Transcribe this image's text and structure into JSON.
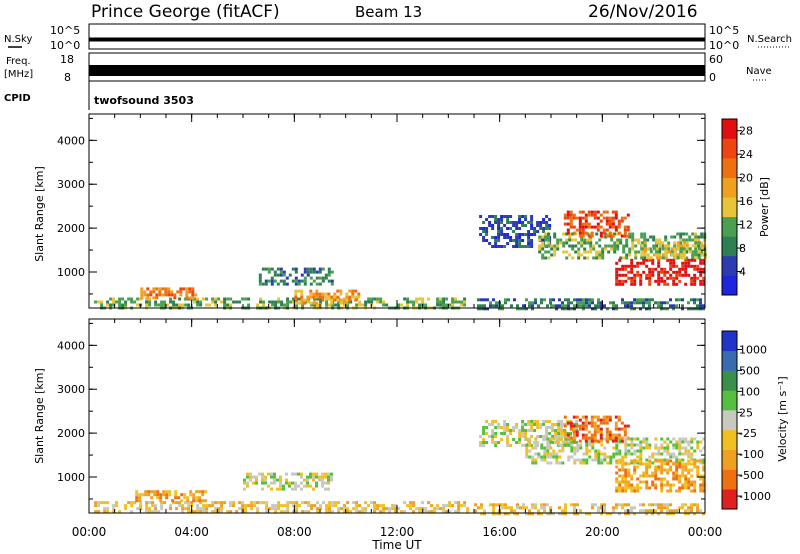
{
  "header": {
    "station": "Prince George (fitACF)",
    "beam": "Beam 13",
    "date": "26/Nov/2016"
  },
  "strips": {
    "nsky_label": "N.Sky",
    "nsearch_label": "N.Search",
    "log_top": "10^5",
    "log_bottom": "10^0",
    "freq_label_1": "Freq.",
    "freq_label_2": "[MHz]",
    "freq_top": "18",
    "freq_bottom": "8",
    "nave_label": "Nave",
    "nave_top": "60",
    "nave_bottom": "0",
    "cpid_label": "CPID",
    "cpid_value": "twofsound 3503"
  },
  "colors": {
    "power_scale": [
      "#1f24e0",
      "#2a3cb0",
      "#2f7f55",
      "#4aa050",
      "#e8c43a",
      "#f0a020",
      "#ee7010",
      "#ee4410",
      "#e01010"
    ],
    "velocity_scale": [
      "#2233c8",
      "#3a6ab0",
      "#3a8f4a",
      "#55c040",
      "#c8c8c0",
      "#f0c020",
      "#f0a020",
      "#ee7010",
      "#e02020"
    ]
  },
  "chart_data": [
    {
      "type": "heatmap",
      "panel": "power",
      "ylabel": "Slant Range [km]",
      "ylim": [
        180,
        4600
      ],
      "yticks": [
        "1000",
        "2000",
        "3000",
        "4000"
      ],
      "xlim": [
        0,
        24
      ],
      "colorbar": {
        "label": "Power [dB]",
        "ticks": [
          "4",
          "8",
          "12",
          "16",
          "20",
          "24",
          "28"
        ],
        "range": [
          0,
          30
        ]
      },
      "regions": [
        {
          "t0": 0.2,
          "t1": 14.8,
          "r0": 180,
          "r1": 420,
          "level": 3
        },
        {
          "t0": 2.0,
          "t1": 4.2,
          "r0": 420,
          "r1": 650,
          "level": 6
        },
        {
          "t0": 6.5,
          "t1": 9.5,
          "r0": 700,
          "r1": 1100,
          "level": 2
        },
        {
          "t0": 8.0,
          "t1": 10.5,
          "r0": 300,
          "r1": 600,
          "level": 5
        },
        {
          "t0": 15.0,
          "t1": 24.0,
          "r0": 180,
          "r1": 400,
          "level": 2
        },
        {
          "t0": 15.2,
          "t1": 18.0,
          "r0": 1600,
          "r1": 2300,
          "level": 1
        },
        {
          "t0": 17.5,
          "t1": 24.0,
          "r0": 1300,
          "r1": 1900,
          "level": 3
        },
        {
          "t0": 18.5,
          "t1": 21.0,
          "r0": 1800,
          "r1": 2400,
          "level": 7
        },
        {
          "t0": 20.5,
          "t1": 24.0,
          "r0": 700,
          "r1": 1300,
          "level": 8
        },
        {
          "t0": 21.5,
          "t1": 24.0,
          "r0": 1300,
          "r1": 1700,
          "level": 4
        }
      ]
    },
    {
      "type": "heatmap",
      "panel": "velocity",
      "ylabel": "Slant Range [km]",
      "ylim": [
        180,
        4600
      ],
      "yticks": [
        "1000",
        "2000",
        "3000",
        "4000"
      ],
      "xlim": [
        0,
        24
      ],
      "xlabel": "Time UT",
      "xticks": [
        "00:00",
        "04:00",
        "08:00",
        "12:00",
        "16:00",
        "20:00",
        "00:00"
      ],
      "colorbar": {
        "label": "Velocity [m s⁻¹]",
        "ticks": [
          "1000",
          "500",
          "100",
          "25",
          "-25",
          "-100",
          "-500",
          "-1000"
        ]
      },
      "regions": [
        {
          "t0": 0.2,
          "t1": 14.8,
          "r0": 180,
          "r1": 450,
          "level": 5
        },
        {
          "t0": 1.8,
          "t1": 4.5,
          "r0": 450,
          "r1": 700,
          "level": 6
        },
        {
          "t0": 6.0,
          "t1": 9.5,
          "r0": 700,
          "r1": 1100,
          "level": 4
        },
        {
          "t0": 15.2,
          "t1": 19.0,
          "r0": 1700,
          "r1": 2300,
          "level": 4
        },
        {
          "t0": 17.0,
          "t1": 24.0,
          "r0": 1300,
          "r1": 1900,
          "level": 4
        },
        {
          "t0": 18.5,
          "t1": 21.0,
          "r0": 1800,
          "r1": 2400,
          "level": 7
        },
        {
          "t0": 20.5,
          "t1": 24.0,
          "r0": 700,
          "r1": 1400,
          "level": 6
        },
        {
          "t0": 15.0,
          "t1": 24.0,
          "r0": 180,
          "r1": 400,
          "level": 5
        }
      ]
    }
  ]
}
